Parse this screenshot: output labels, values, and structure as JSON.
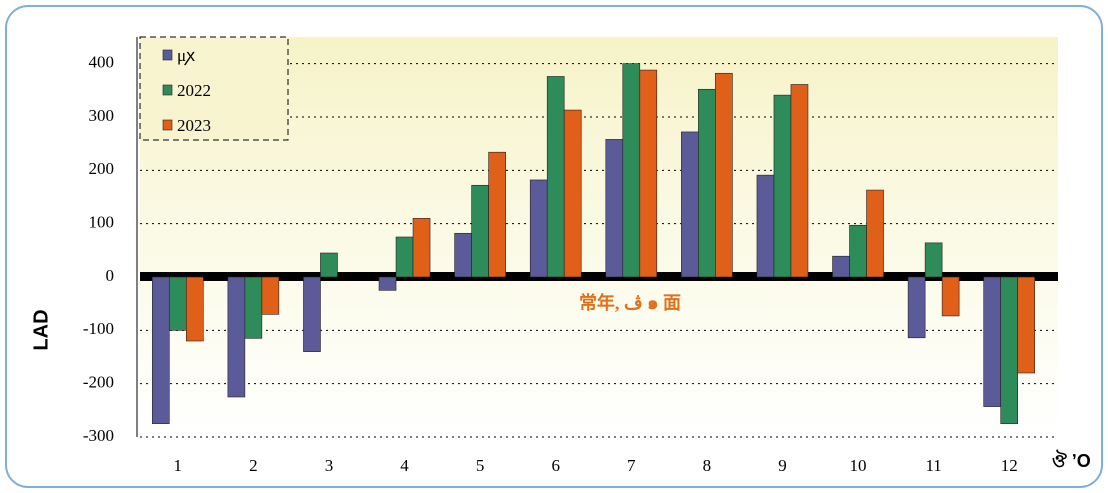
{
  "chart_data": {
    "type": "bar",
    "categories": [
      1,
      2,
      3,
      4,
      5,
      6,
      7,
      8,
      9,
      10,
      11,
      12
    ],
    "series": [
      {
        "name": "μꭗ",
        "color": "#5b5b99",
        "values": [
          -275,
          -225,
          -140,
          -25,
          82,
          182,
          258,
          272,
          191,
          39,
          -114,
          -243
        ]
      },
      {
        "name": "2022",
        "color": "#2e8b5a",
        "values": [
          -100,
          -115,
          45,
          75,
          172,
          376,
          400,
          352,
          341,
          97,
          64,
          -275
        ]
      },
      {
        "name": "2023",
        "color": "#e0601a",
        "values": [
          -120,
          -70,
          0,
          110,
          234,
          313,
          388,
          382,
          361,
          163,
          -73,
          -180
        ]
      }
    ],
    "ylim": [
      -300,
      450
    ],
    "yticks": [
      -300,
      -200,
      -100,
      0,
      100,
      200,
      300,
      400
    ],
    "grid": true,
    "annotation": "常年, ڤ ๑ 面",
    "ylabel": "LAD",
    "xlabel": "ঔ ʼO"
  }
}
